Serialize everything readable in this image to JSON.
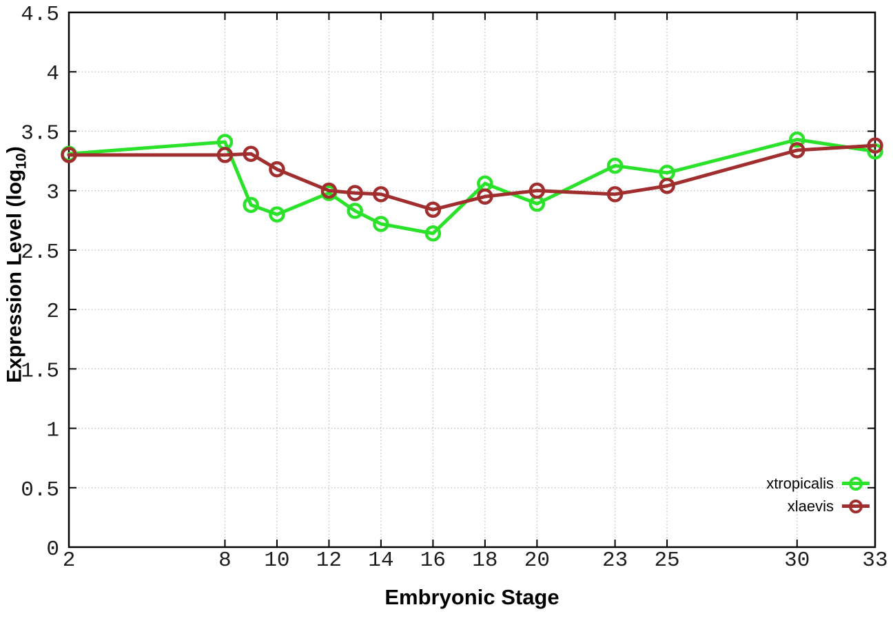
{
  "figure": {
    "background": "#ffffff",
    "border_color": "#000000",
    "grid_color": "#bdbdbd",
    "tick_label_color": "#1c1c1c"
  },
  "chart_data": {
    "type": "line",
    "title": "",
    "xlabel": "Embryonic Stage",
    "ylabel": "Expression Level (log10)",
    "ylabel_parts": {
      "main": "Expression Level (log",
      "sub": "10",
      "close": ")"
    },
    "x": [
      2,
      8,
      9,
      10,
      12,
      13,
      14,
      16,
      18,
      20,
      23,
      25,
      30,
      33
    ],
    "xlim": [
      2,
      33
    ],
    "ylim": [
      0,
      4.5
    ],
    "xticks": [
      2,
      8,
      10,
      12,
      14,
      16,
      18,
      20,
      23,
      25,
      30,
      33
    ],
    "xticklabels": [
      "2",
      "8",
      "10",
      "12",
      "14",
      "16",
      "18",
      "20",
      "23",
      "25",
      "30",
      "33"
    ],
    "yticks": [
      0,
      0.5,
      1,
      1.5,
      2,
      2.5,
      3,
      3.5,
      4,
      4.5
    ],
    "yticklabels": [
      "0",
      "0.5",
      "1",
      "1.5",
      "2",
      "2.5",
      "3",
      "3.5",
      "4",
      "4.5"
    ],
    "grid": true,
    "legend_position": "inside-bottom-right",
    "series": [
      {
        "name": "xtropicalis",
        "color": "#2be22b",
        "marker": "open-circle",
        "values": [
          3.31,
          3.41,
          2.88,
          2.8,
          2.98,
          2.83,
          2.72,
          2.64,
          3.06,
          2.89,
          3.21,
          3.15,
          3.43,
          3.33
        ]
      },
      {
        "name": "xlaevis",
        "color": "#a12e2e",
        "marker": "open-circle",
        "values": [
          3.3,
          3.3,
          3.31,
          3.18,
          3.0,
          2.98,
          2.97,
          2.84,
          2.95,
          3.0,
          2.97,
          3.04,
          3.34,
          3.38
        ]
      }
    ]
  }
}
